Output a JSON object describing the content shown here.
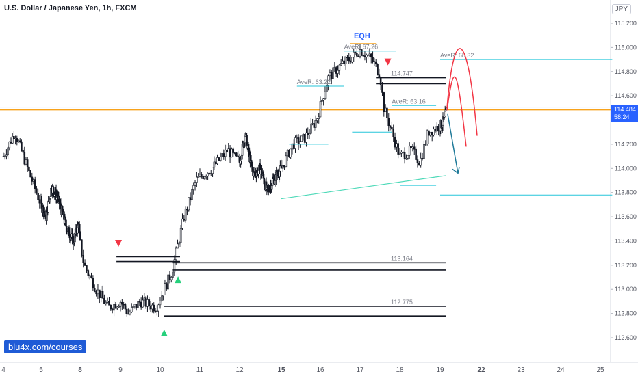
{
  "header": {
    "title": "U.S. Dollar / Japanese Yen, 1h, FXCM",
    "currency": "JPY"
  },
  "watermark": "blu4x.com/courses",
  "price_tag": {
    "price": "114.484",
    "countdown": "58:24"
  },
  "colors": {
    "bull": "#131722",
    "bear": "#131722",
    "current_line": "#f7a21b",
    "eqh": "#f7a21b",
    "avg": "#26c6da",
    "zone": "#131722",
    "trend": "#4dd9b8",
    "arc": "#f23645",
    "arrow": "#1f7a99",
    "down_marker": "#f23645",
    "up_marker": "#26d07c",
    "eqh_text": "#2962ff"
  },
  "chart_data": {
    "type": "candlestick",
    "x_ticks": [
      {
        "label": "4",
        "day": 4,
        "bold": false
      },
      {
        "label": "5",
        "day": 5,
        "bold": false
      },
      {
        "label": "8",
        "day": 8,
        "bold": true
      },
      {
        "label": "9",
        "day": 9,
        "bold": false
      },
      {
        "label": "10",
        "day": 10,
        "bold": false
      },
      {
        "label": "11",
        "day": 11,
        "bold": false
      },
      {
        "label": "12",
        "day": 12,
        "bold": false
      },
      {
        "label": "15",
        "day": 15,
        "bold": true
      },
      {
        "label": "16",
        "day": 16,
        "bold": false
      },
      {
        "label": "17",
        "day": 17,
        "bold": false
      },
      {
        "label": "18",
        "day": 18,
        "bold": false
      },
      {
        "label": "19",
        "day": 19,
        "bold": false
      },
      {
        "label": "22",
        "day": 22,
        "bold": true
      },
      {
        "label": "23",
        "day": 23,
        "bold": false
      },
      {
        "label": "24",
        "day": 24,
        "bold": false
      },
      {
        "label": "25",
        "day": 25,
        "bold": false
      }
    ],
    "y_ticks": [
      "115.200",
      "115.000",
      "114.800",
      "114.600",
      "114.400",
      "114.200",
      "114.000",
      "113.800",
      "113.600",
      "113.400",
      "113.200",
      "113.000",
      "112.800",
      "112.600"
    ],
    "ylim": [
      112.45,
      115.3
    ],
    "xlim": [
      4.0,
      25.3
    ],
    "candles_path_days": [
      4.0,
      4.3,
      4.7,
      5.0,
      5.4,
      5.8,
      6.3,
      7.0,
      7.5,
      7.9,
      8.1,
      8.4,
      8.7,
      9.0,
      9.2,
      9.5,
      9.9,
      10.3,
      10.6,
      10.9,
      11.3,
      11.7,
      12.0,
      12.4,
      12.7,
      13.0,
      13.5,
      14.0,
      14.4,
      15.0,
      15.3,
      15.6,
      15.9,
      16.2,
      16.5,
      16.8,
      17.0,
      17.3,
      17.5,
      17.6,
      17.8,
      18.0,
      18.3,
      18.5,
      18.7,
      19.0,
      19.3,
      19.45
    ],
    "candles_path_prices": [
      114.1,
      114.3,
      113.95,
      113.7,
      113.6,
      113.85,
      113.75,
      113.5,
      113.4,
      113.55,
      113.2,
      113.0,
      112.85,
      112.9,
      112.8,
      112.9,
      112.85,
      113.15,
      113.6,
      113.9,
      114.0,
      114.15,
      114.05,
      114.28,
      114.1,
      113.95,
      114.0,
      113.8,
      113.9,
      114.0,
      114.2,
      114.25,
      114.4,
      114.75,
      114.85,
      114.92,
      114.98,
      114.9,
      114.78,
      114.5,
      114.3,
      114.1,
      114.15,
      114.05,
      114.3,
      114.35,
      114.4,
      114.48
    ],
    "current_price": 114.484,
    "eqh": {
      "label": "EQH",
      "price": 115.03
    },
    "avg_levels": [
      {
        "label": "AveR: 67.26",
        "price": 114.97,
        "x1": 16.6,
        "x2": 17.9
      },
      {
        "label": "AveR: 68.32",
        "price": 114.9,
        "x1": 19.0,
        "x2": 25.3
      },
      {
        "label": "AveR: 63.22",
        "price": 114.68,
        "x1": 15.4,
        "x2": 16.6
      },
      {
        "label": "AveR: 63.16",
        "price": 114.52,
        "x1": 17.8,
        "x2": 18.9
      },
      {
        "label": "",
        "price": 114.3,
        "x1": 16.8,
        "x2": 17.8
      },
      {
        "label": "",
        "price": 114.2,
        "x1": 15.2,
        "x2": 16.2
      },
      {
        "label": "",
        "price": 113.86,
        "x1": 18.0,
        "x2": 18.9
      },
      {
        "label": "",
        "price": 113.78,
        "x1": 19.0,
        "x2": 25.3
      }
    ],
    "zones": [
      {
        "label": "114.747",
        "top": 114.75,
        "bottom": 114.7,
        "x1": 17.4,
        "x2": 19.4
      },
      {
        "label": "113.164",
        "top": 113.22,
        "bottom": 113.16,
        "x1": 10.3,
        "x2": 19.4
      },
      {
        "label": "",
        "top": 113.27,
        "bottom": 113.23,
        "x1": 8.9,
        "x2": 10.5
      },
      {
        "label": "112.775",
        "top": 112.86,
        "bottom": 112.78,
        "x1": 10.1,
        "x2": 19.4
      }
    ],
    "trendline": {
      "x1": 15.0,
      "y1": 113.75,
      "x2": 19.4,
      "y2": 113.94
    },
    "markers": [
      {
        "type": "down",
        "day": 8.95,
        "price": 113.38
      },
      {
        "type": "up",
        "day": 10.45,
        "price": 113.08
      },
      {
        "type": "up",
        "day": 10.1,
        "price": 112.64
      },
      {
        "type": "down",
        "day": 17.7,
        "price": 114.88
      }
    ],
    "arcs": [
      {
        "x1": 19.5,
        "x2": 20.9,
        "peak": 114.72,
        "base1": 114.48,
        "base2": 114.18
      },
      {
        "x1": 19.5,
        "x2": 21.7,
        "peak": 115.02,
        "base1": 114.5,
        "base2": 114.27
      }
    ],
    "arrow": {
      "x1": 19.55,
      "y1": 114.45,
      "x2": 20.3,
      "y2": 113.96
    }
  }
}
